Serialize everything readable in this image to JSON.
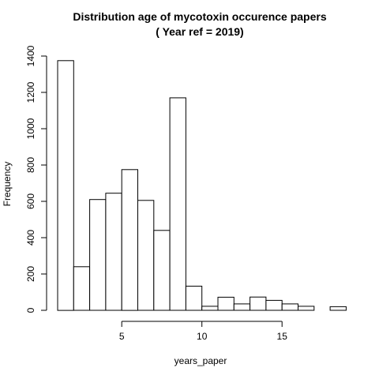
{
  "chart_data": {
    "type": "bar",
    "title_line1": "Distribution age of mycotoxin occurence papers",
    "title_line2": "( Year ref = 2019)",
    "xlabel": "years_paper",
    "ylabel": "Frequency",
    "bins": [
      {
        "x0": 1,
        "x1": 2,
        "value": 1375
      },
      {
        "x0": 2,
        "x1": 3,
        "value": 240
      },
      {
        "x0": 3,
        "x1": 4,
        "value": 610
      },
      {
        "x0": 4,
        "x1": 5,
        "value": 645
      },
      {
        "x0": 5,
        "x1": 6,
        "value": 775
      },
      {
        "x0": 6,
        "x1": 7,
        "value": 605
      },
      {
        "x0": 7,
        "x1": 8,
        "value": 440
      },
      {
        "x0": 8,
        "x1": 9,
        "value": 1170
      },
      {
        "x0": 9,
        "x1": 10,
        "value": 133
      },
      {
        "x0": 10,
        "x1": 11,
        "value": 22
      },
      {
        "x0": 11,
        "x1": 12,
        "value": 72
      },
      {
        "x0": 12,
        "x1": 13,
        "value": 35
      },
      {
        "x0": 13,
        "x1": 14,
        "value": 73
      },
      {
        "x0": 14,
        "x1": 15,
        "value": 55
      },
      {
        "x0": 15,
        "x1": 16,
        "value": 35
      },
      {
        "x0": 16,
        "x1": 17,
        "value": 22
      },
      {
        "x0": 17,
        "x1": 18,
        "value": 0
      },
      {
        "x0": 18,
        "x1": 19,
        "value": 20
      }
    ],
    "xlim": [
      1,
      19
    ],
    "ylim": [
      0,
      1400
    ],
    "xticks": [
      5,
      10,
      15
    ],
    "yticks": [
      0,
      200,
      400,
      600,
      800,
      1000,
      1200,
      1400
    ],
    "grid": false,
    "legend": "none"
  }
}
